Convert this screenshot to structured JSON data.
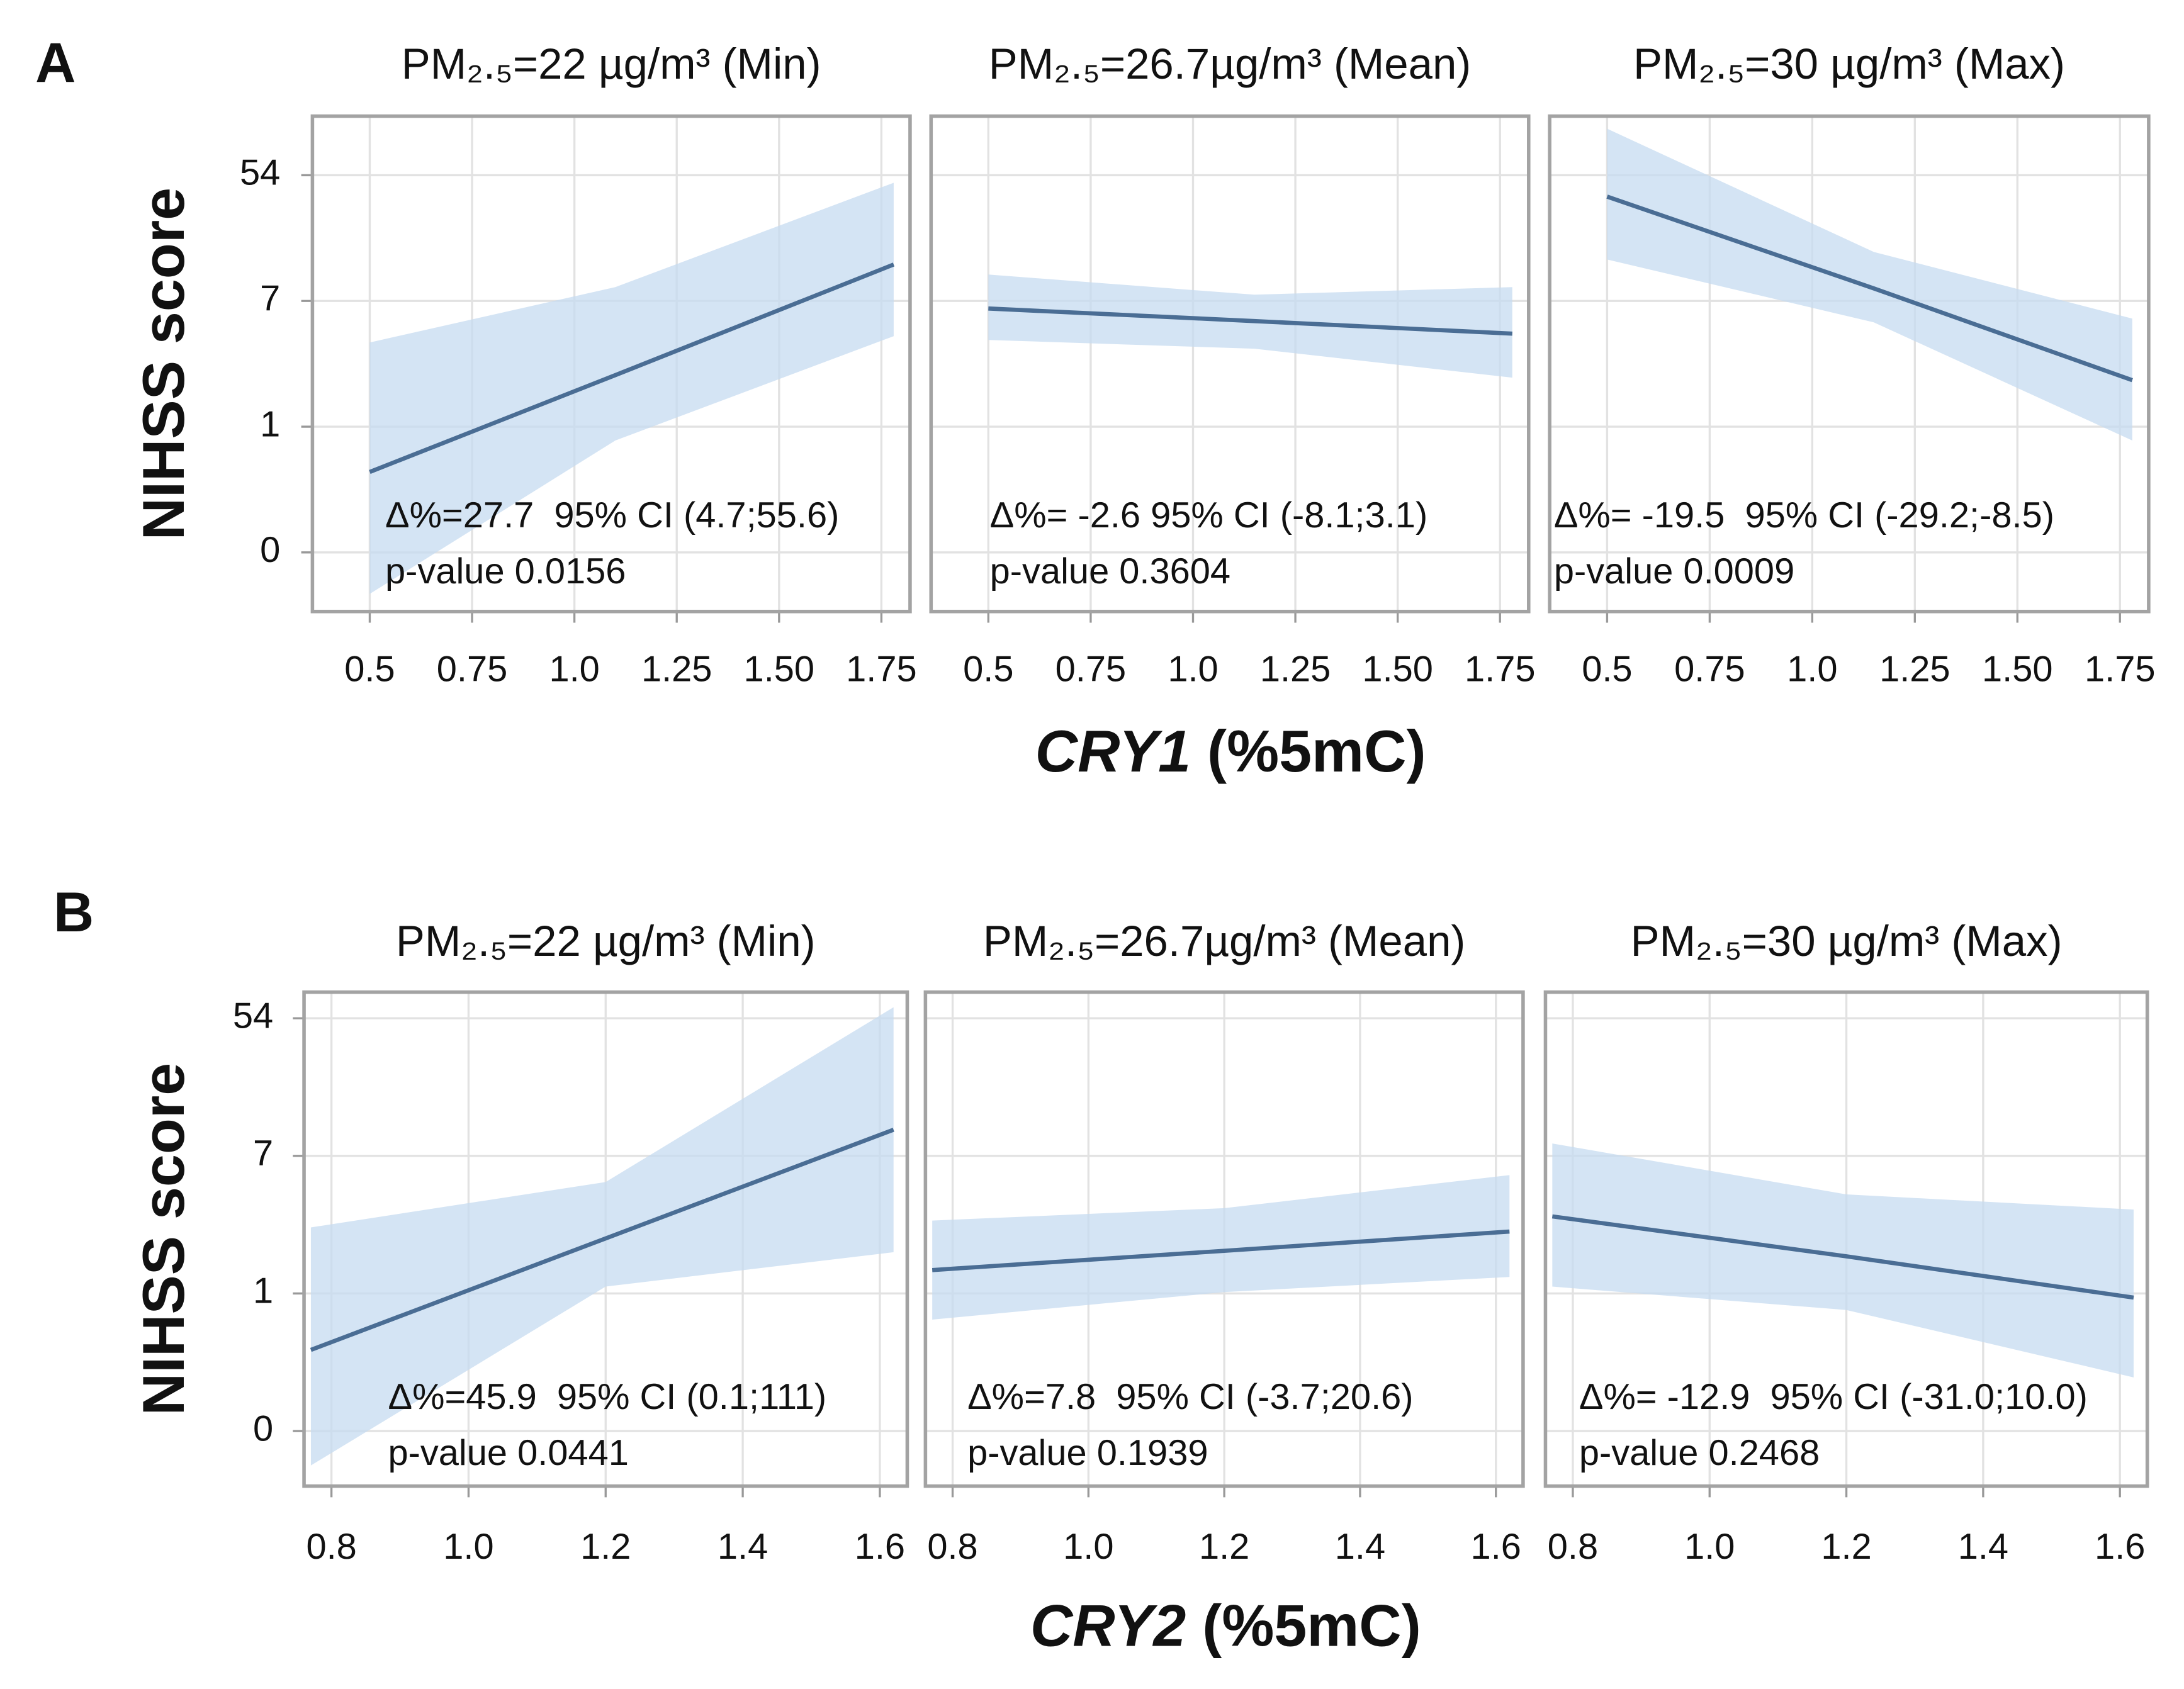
{
  "figure": {
    "rows": [
      {
        "letter": "A",
        "y_label": "NIHSS score",
        "x_label_gene": "CRY1",
        "x_label_unit": "(%5mC)"
      },
      {
        "letter": "B",
        "y_label": "NIHSS score",
        "x_label_gene": "CRY2",
        "x_label_unit": "(%5mC)"
      }
    ]
  },
  "chart_data": [
    {
      "type": "line",
      "title": "PM₂.₅=22 µg/m³ (Min)",
      "color": "#4a6d94",
      "band_color": "#c6dbf0",
      "x": [
        0.5,
        1.1,
        1.78
      ],
      "values": [
        0.64,
        1.41,
        2.29
      ],
      "upper": [
        1.67,
        2.11,
        2.94
      ],
      "lower": [
        -0.33,
        0.89,
        1.72
      ],
      "xlim": [
        0.36,
        1.82
      ],
      "xticks": [
        0.5,
        0.75,
        {
          "value": 1,
          "label": "1.0"
        },
        1.25,
        {
          "value": 1.5,
          "label": "1.50"
        },
        1.75
      ],
      "ylim": [
        -0.47,
        3.47
      ],
      "yticks": [
        0,
        1,
        {
          "value": 2,
          "label": "7"
        },
        {
          "value": 3,
          "label": "54"
        }
      ],
      "grid": true,
      "annotations": [
        "Δ%=27.7  95% CI (4.7;55.6)",
        "p-value 0.0156"
      ]
    },
    {
      "type": "line",
      "title": "PM₂.₅=26.7µg/m³ (Mean)",
      "color": "#4a6d94",
      "band_color": "#c6dbf0",
      "x": [
        0.5,
        1.15,
        1.78
      ],
      "values": [
        1.94,
        1.84,
        1.74
      ],
      "upper": [
        2.21,
        2.05,
        2.11
      ],
      "lower": [
        1.69,
        1.62,
        1.39
      ],
      "xlim": [
        0.36,
        1.82
      ],
      "xticks": [
        0.5,
        0.75,
        {
          "value": 1,
          "label": "1.0"
        },
        1.25,
        {
          "value": 1.5,
          "label": "1.50"
        },
        1.75
      ],
      "ylim": [
        -0.47,
        3.47
      ],
      "yticks": [
        0,
        1,
        {
          "value": 2,
          "label": "7"
        },
        {
          "value": 3,
          "label": "54"
        }
      ],
      "grid": true,
      "annotations": [
        "Δ%= -2.6 95% CI (-8.1;3.1)",
        "p-value 0.3604"
      ]
    },
    {
      "type": "line",
      "title": "PM₂.₅=30 µg/m³ (Max)",
      "color": "#4a6d94",
      "band_color": "#c6dbf0",
      "x": [
        0.5,
        1.15,
        1.78
      ],
      "values": [
        2.83,
        2.1,
        1.37
      ],
      "upper": [
        3.37,
        2.39,
        1.86
      ],
      "lower": [
        2.33,
        1.83,
        0.89
      ],
      "xlim": [
        0.36,
        1.82
      ],
      "xticks": [
        0.5,
        0.75,
        {
          "value": 1,
          "label": "1.0"
        },
        1.25,
        {
          "value": 1.5,
          "label": "1.50"
        },
        1.75
      ],
      "ylim": [
        -0.47,
        3.47
      ],
      "yticks": [
        0,
        1,
        {
          "value": 2,
          "label": "7"
        },
        {
          "value": 3,
          "label": "54"
        }
      ],
      "grid": true,
      "annotations": [
        "Δ%= -19.5  95% CI (-29.2;-8.5)",
        "p-value 0.0009"
      ]
    },
    {
      "type": "line",
      "title": "PM₂.₅=22 µg/m³ (Min)",
      "color": "#4a6d94",
      "band_color": "#c6dbf0",
      "x": [
        0.77,
        1.2,
        1.62
      ],
      "values": [
        0.59,
        1.4,
        2.19
      ],
      "upper": [
        1.48,
        1.81,
        3.08
      ],
      "lower": [
        -0.25,
        1.05,
        1.3
      ],
      "xlim": [
        0.76,
        1.64
      ],
      "xticks": [
        0.8,
        {
          "value": 1,
          "label": "1.0"
        },
        1.2,
        1.4,
        1.6
      ],
      "ylim": [
        -0.4,
        3.19
      ],
      "yticks": [
        0,
        1,
        {
          "value": 2,
          "label": "7"
        },
        {
          "value": 3,
          "label": "54"
        }
      ],
      "grid": true,
      "annotations": [
        "Δ%=45.9  95% CI (0.1;111)",
        "p-value 0.0441"
      ]
    },
    {
      "type": "line",
      "title": "PM₂.₅=26.7µg/m³ (Mean)",
      "color": "#4a6d94",
      "band_color": "#c6dbf0",
      "x": [
        0.77,
        1.2,
        1.62
      ],
      "values": [
        1.17,
        1.31,
        1.45
      ],
      "upper": [
        1.53,
        1.62,
        1.86
      ],
      "lower": [
        0.81,
        1.01,
        1.12
      ],
      "xlim": [
        0.76,
        1.64
      ],
      "xticks": [
        0.8,
        {
          "value": 1,
          "label": "1.0"
        },
        1.2,
        1.4,
        1.6
      ],
      "ylim": [
        -0.4,
        3.19
      ],
      "yticks": [
        0,
        1,
        {
          "value": 2,
          "label": "7"
        },
        {
          "value": 3,
          "label": "54"
        }
      ],
      "grid": true,
      "annotations": [
        "Δ%=7.8  95% CI (-3.7;20.6)",
        "p-value 0.1939"
      ]
    },
    {
      "type": "line",
      "title": "PM₂.₅=30 µg/m³ (Max)",
      "color": "#4a6d94",
      "band_color": "#c6dbf0",
      "x": [
        0.77,
        1.2,
        1.62
      ],
      "values": [
        1.56,
        1.27,
        0.97
      ],
      "upper": [
        2.09,
        1.72,
        1.61
      ],
      "lower": [
        1.05,
        0.88,
        0.39
      ],
      "xlim": [
        0.76,
        1.64
      ],
      "xticks": [
        0.8,
        {
          "value": 1,
          "label": "1.0"
        },
        1.2,
        1.4,
        1.6
      ],
      "ylim": [
        -0.4,
        3.19
      ],
      "yticks": [
        0,
        1,
        {
          "value": 2,
          "label": "7"
        },
        {
          "value": 3,
          "label": "54"
        }
      ],
      "grid": true,
      "annotations": [
        "Δ%= -12.9  95% CI (-31.0;10.0)",
        "p-value 0.2468"
      ]
    }
  ]
}
